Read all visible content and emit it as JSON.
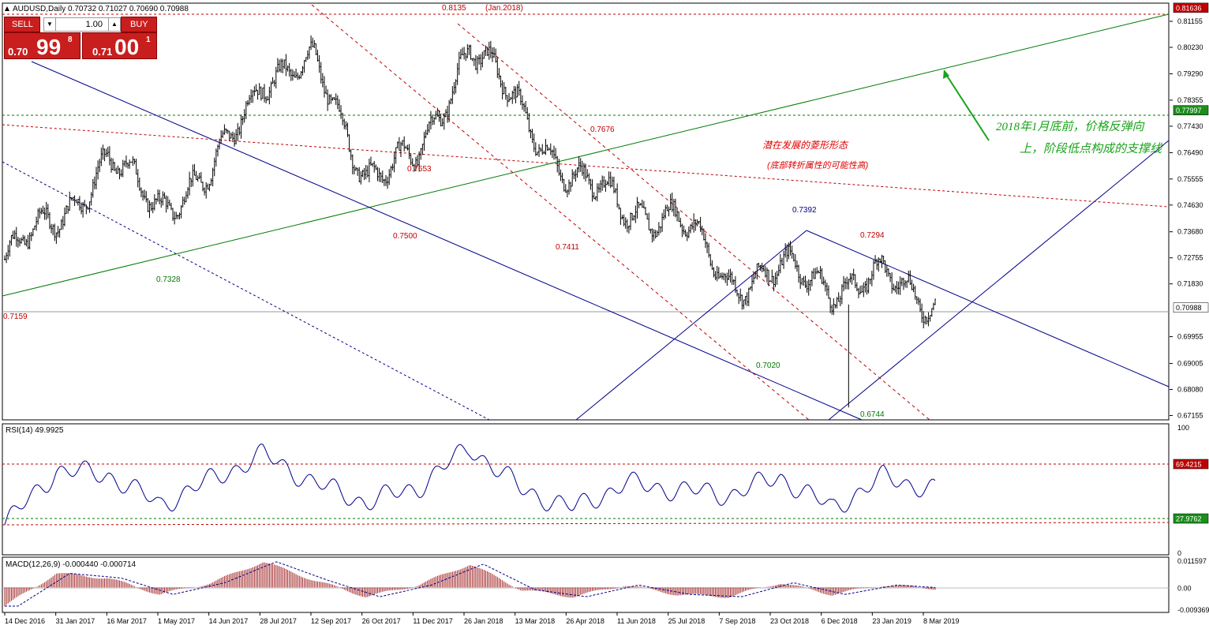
{
  "header": {
    "symbol_line": "AUDUSD,Daily  0.70732 0.71027 0.70690 0.70988",
    "rsi_label": "RSI(14) 49.9925",
    "macd_label": "MACD(12,26,9) -0.000440 -0.000714"
  },
  "trade_panel": {
    "sell_label": "SELL",
    "buy_label": "BUY",
    "lot_value": "1.00",
    "sell_small": "0.70",
    "sell_big": "99",
    "sell_sup": "8",
    "buy_small": "0.71",
    "buy_big": "00",
    "buy_sup": "1"
  },
  "price_axis": {
    "ticks": [
      "0.81155",
      "0.80230",
      "0.79290",
      "0.78355",
      "0.77430",
      "0.76490",
      "0.75555",
      "0.74630",
      "0.73680",
      "0.72755",
      "0.71830",
      "0.69955",
      "0.69005",
      "0.68080",
      "0.67155"
    ],
    "marker_top": "0.81636",
    "marker_current": "0.70988",
    "marker_green": "0.77997"
  },
  "rsi_axis": {
    "ticks": [
      "100",
      "0"
    ],
    "marker_high": "69.4215",
    "marker_low": "27.9762"
  },
  "macd_axis": {
    "ticks": [
      "0.011597",
      "0.00",
      "-0.009369"
    ]
  },
  "date_axis": [
    "14 Dec 2016",
    "31 Jan 2017",
    "16 Mar 2017",
    "1 May 2017",
    "14 Jun 2017",
    "28 Jul 2017",
    "12 Sep 2017",
    "26 Oct 2017",
    "11 Dec 2017",
    "26 Jan 2018",
    "13 Mar 2018",
    "26 Apr 2018",
    "11 Jun 2018",
    "25 Jul 2018",
    "7 Sep 2018",
    "23 Oct 2018",
    "6 Dec 2018",
    "23 Jan 2019",
    "8 Mar 2019"
  ],
  "annotations": {
    "high_value": "0.8135",
    "high_date": "(Jan.2018)",
    "v7676": "0.7676",
    "v7653": "0.7653",
    "v7500": "0.7500",
    "v7411": "0.7411",
    "v7328": "0.7328",
    "v7159": "0.7159",
    "v7392": "0.7392",
    "v7294": "0.7294",
    "v7020": "0.7020",
    "v6744": "0.6744",
    "note_red_1": "潜在发展的菱形形态",
    "note_red_2": "(底部转折属性的可能性高)",
    "note_green_1": "2018年1月底前，价格反弹向",
    "note_green_2": "上，阶段低点构成的支撑线"
  },
  "colors": {
    "candles": "#000000",
    "trend_blue": "#00008b",
    "trend_green": "#007a00",
    "dash_red": "#c00000",
    "note_red": "#e00000",
    "note_green": "#1aa31a",
    "trade_red": "#c91e1e"
  },
  "chart_data": [
    {
      "type": "line",
      "title": "AUDUSD,Daily",
      "x": [
        "14 Dec 2016",
        "31 Jan 2017",
        "16 Mar 2017",
        "1 May 2017",
        "14 Jun 2017",
        "28 Jul 2017",
        "12 Sep 2017",
        "26 Oct 2017",
        "11 Dec 2017",
        "26 Jan 2018",
        "13 Mar 2018",
        "26 Apr 2018",
        "11 Jun 2018",
        "25 Jul 2018",
        "7 Sep 2018",
        "23 Oct 2018",
        "6 Dec 2018",
        "23 Jan 2019",
        "8 Mar 2019"
      ],
      "series": [
        {
          "values": [
            0.727,
            0.742,
            0.761,
            0.747,
            0.756,
            0.793,
            0.795,
            0.758,
            0.762,
            0.805,
            0.778,
            0.756,
            0.745,
            0.742,
            0.719,
            0.723,
            0.718,
            0.72,
            0.712
          ]
        }
      ],
      "ylim": [
        0.67,
        0.818
      ]
    },
    {
      "type": "line",
      "title": "RSI(14) 49.9925",
      "series": [
        {
          "values": [
            22,
            65,
            62,
            38,
            58,
            78,
            55,
            40,
            52,
            84,
            50,
            35,
            55,
            50,
            46,
            60,
            35,
            60,
            50
          ]
        }
      ],
      "ylim": [
        0,
        100
      ]
    },
    {
      "type": "bar",
      "title": "MACD(12,26,9) -0.000440 -0.000714",
      "series": [
        {
          "values": [
            -0.008,
            0.006,
            0.004,
            -0.003,
            0.002,
            0.011,
            0.003,
            -0.004,
            0.001,
            0.01,
            -0.001,
            -0.004,
            0.001,
            -0.003,
            -0.004,
            0.002,
            -0.003,
            0.001,
            -0.0004
          ]
        }
      ],
      "ylim": [
        -0.009369,
        0.011597
      ]
    }
  ]
}
